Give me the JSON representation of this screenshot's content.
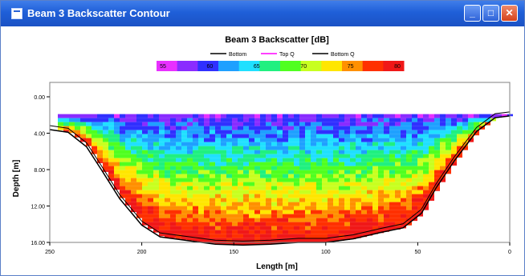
{
  "window": {
    "title": "Beam 3 Backscatter Contour",
    "buttons": {
      "minimize": "_",
      "maximize": "□",
      "close": "✕"
    }
  },
  "chart_data": {
    "type": "heatmap",
    "title": "Beam 3 Backscatter [dB]",
    "legend": [
      {
        "label": "Bottom",
        "color": "#000000"
      },
      {
        "label": "Top Q",
        "color": "#ff00ff"
      },
      {
        "label": "Bottom Q",
        "color": "#000000"
      }
    ],
    "colorbar": {
      "labels": [
        "55",
        "60",
        "65",
        "70",
        "75",
        "80"
      ],
      "colors": [
        "#e830ff",
        "#8a2cff",
        "#3030ff",
        "#1fa0ff",
        "#20e0ff",
        "#20f080",
        "#50ff20",
        "#c8ff20",
        "#ffe600",
        "#ff9000",
        "#ff3000",
        "#f01818"
      ]
    },
    "xlabel": "Length [m]",
    "ylabel": "Depth [m]",
    "x_ticks": [
      "250",
      "200",
      "150",
      "100",
      "50",
      "0"
    ],
    "y_ticks": [
      "0.00",
      "4.00",
      "8.00",
      "12.00",
      "16.00"
    ],
    "xlim": [
      250,
      0
    ],
    "ylim": [
      0,
      16
    ],
    "bottom_profile": [
      [
        250,
        3.6
      ],
      [
        240,
        3.9
      ],
      [
        230,
        5.5
      ],
      [
        222,
        8.0
      ],
      [
        212,
        11.2
      ],
      [
        200,
        14.1
      ],
      [
        190,
        15.4
      ],
      [
        175,
        15.8
      ],
      [
        160,
        16.2
      ],
      [
        145,
        16.3
      ],
      [
        130,
        16.2
      ],
      [
        115,
        16.0
      ],
      [
        100,
        16.0
      ],
      [
        85,
        15.6
      ],
      [
        70,
        14.9
      ],
      [
        58,
        14.4
      ],
      [
        48,
        12.8
      ],
      [
        40,
        10.0
      ],
      [
        30,
        7.0
      ],
      [
        18,
        3.8
      ],
      [
        8,
        2.3
      ],
      [
        0,
        2.1
      ]
    ]
  }
}
